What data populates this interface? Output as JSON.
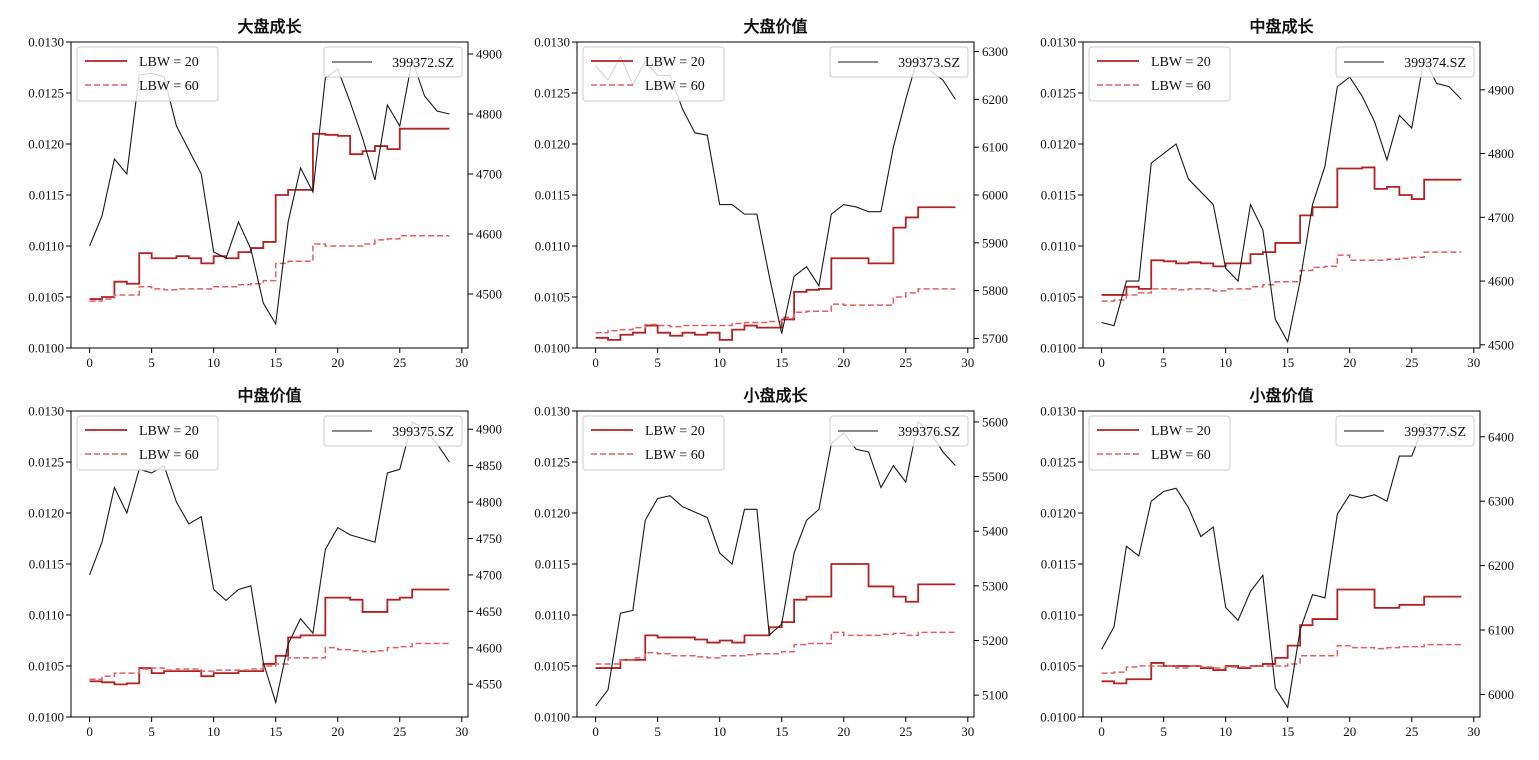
{
  "figure": {
    "legend_left": {
      "lbw20": "LBW = 20",
      "lbw60": "LBW = 60"
    },
    "left_axis": {
      "ylim": [
        0.01,
        0.013
      ],
      "ticks": [
        "0.0100",
        "0.0105",
        "0.0110",
        "0.0115",
        "0.0120",
        "0.0125",
        "0.0130"
      ]
    },
    "x_axis": {
      "xlim": [
        -1.5,
        30.5
      ],
      "ticks": [
        "0",
        "5",
        "10",
        "15",
        "20",
        "25",
        "30"
      ]
    },
    "colors": {
      "lbw20": "#b22222",
      "lbw60": "#e06060",
      "index": "#1a1a1a"
    }
  },
  "chart_data": [
    {
      "type": "line",
      "title": "大盘成长",
      "x": [
        0,
        1,
        2,
        3,
        4,
        5,
        6,
        7,
        8,
        9,
        10,
        11,
        12,
        13,
        14,
        15,
        16,
        17,
        18,
        19,
        20,
        21,
        22,
        23,
        24,
        25,
        26,
        27,
        28,
        29
      ],
      "series": [
        {
          "name": "LBW = 20",
          "axis": "left",
          "step": true,
          "values": [
            0.01048,
            0.0105,
            0.01065,
            0.01063,
            0.01093,
            0.01088,
            0.01088,
            0.0109,
            0.01088,
            0.01083,
            0.0109,
            0.01088,
            0.01094,
            0.01098,
            0.01104,
            0.0115,
            0.01155,
            0.01155,
            0.0121,
            0.01209,
            0.01208,
            0.0119,
            0.01193,
            0.01198,
            0.01195,
            0.01215,
            0.01215,
            0.01215,
            0.01215,
            0.01215
          ]
        },
        {
          "name": "LBW = 60",
          "axis": "left",
          "step": true,
          "dashed": true,
          "values": [
            0.01046,
            0.01048,
            0.01052,
            0.01052,
            0.0106,
            0.01058,
            0.01057,
            0.01058,
            0.01058,
            0.01058,
            0.0106,
            0.0106,
            0.01062,
            0.01063,
            0.01066,
            0.01083,
            0.01085,
            0.01085,
            0.01102,
            0.011,
            0.011,
            0.011,
            0.01102,
            0.01106,
            0.01107,
            0.0111,
            0.0111,
            0.0111,
            0.0111,
            0.0111
          ]
        },
        {
          "name": "399372.SZ",
          "axis": "right",
          "values": [
            4580,
            4630,
            4725,
            4700,
            4865,
            4868,
            4862,
            4780,
            4740,
            4700,
            4570,
            4560,
            4620,
            4575,
            4485,
            4450,
            4620,
            4710,
            4670,
            4860,
            4875,
            4820,
            4760,
            4690,
            4815,
            4780,
            4890,
            4830,
            4805,
            4800
          ]
        }
      ],
      "y2lim": [
        4410,
        4920
      ],
      "y2ticks": [
        4500,
        4600,
        4700,
        4800,
        4900
      ]
    },
    {
      "type": "line",
      "title": "大盘价值",
      "x": [
        0,
        1,
        2,
        3,
        4,
        5,
        6,
        7,
        8,
        9,
        10,
        11,
        12,
        13,
        14,
        15,
        16,
        17,
        18,
        19,
        20,
        21,
        22,
        23,
        24,
        25,
        26,
        27,
        28,
        29
      ],
      "series": [
        {
          "name": "LBW = 20",
          "axis": "left",
          "step": true,
          "values": [
            0.0101,
            0.01008,
            0.01013,
            0.01015,
            0.01022,
            0.01015,
            0.01012,
            0.01015,
            0.01013,
            0.01015,
            0.01008,
            0.01018,
            0.01022,
            0.0102,
            0.0102,
            0.01028,
            0.01055,
            0.01057,
            0.01058,
            0.01088,
            0.01088,
            0.01088,
            0.01083,
            0.01083,
            0.01118,
            0.01128,
            0.01138,
            0.01138,
            0.01138,
            0.01138
          ]
        },
        {
          "name": "LBW = 60",
          "axis": "left",
          "step": true,
          "dashed": true,
          "values": [
            0.01015,
            0.01017,
            0.01018,
            0.0102,
            0.01023,
            0.01022,
            0.01021,
            0.01022,
            0.01022,
            0.01022,
            0.01022,
            0.01024,
            0.01025,
            0.01025,
            0.01026,
            0.0103,
            0.01035,
            0.01036,
            0.01036,
            0.01043,
            0.01042,
            0.01042,
            0.01042,
            0.01042,
            0.0105,
            0.01054,
            0.01058,
            0.01058,
            0.01058,
            0.01058
          ]
        },
        {
          "name": "399373.SZ",
          "axis": "right",
          "values": [
            6270,
            6240,
            6290,
            6230,
            6280,
            6250,
            6250,
            6180,
            6130,
            6125,
            5980,
            5980,
            5960,
            5960,
            5830,
            5710,
            5830,
            5850,
            5810,
            5960,
            5980,
            5975,
            5965,
            5965,
            6100,
            6200,
            6290,
            6260,
            6240,
            6200
          ]
        }
      ],
      "y2lim": [
        5680,
        6320
      ],
      "y2ticks": [
        5700,
        5800,
        5900,
        6000,
        6100,
        6200,
        6300
      ]
    },
    {
      "type": "line",
      "title": "中盘成长",
      "x": [
        0,
        1,
        2,
        3,
        4,
        5,
        6,
        7,
        8,
        9,
        10,
        11,
        12,
        13,
        14,
        15,
        16,
        17,
        18,
        19,
        20,
        21,
        22,
        23,
        24,
        25,
        26,
        27,
        28,
        29
      ],
      "series": [
        {
          "name": "LBW = 20",
          "axis": "left",
          "step": true,
          "values": [
            0.01052,
            0.01052,
            0.0106,
            0.01058,
            0.01086,
            0.01085,
            0.01083,
            0.01084,
            0.01083,
            0.0108,
            0.01083,
            0.01083,
            0.01092,
            0.01094,
            0.01103,
            0.01103,
            0.0113,
            0.01138,
            0.01138,
            0.01176,
            0.01176,
            0.01177,
            0.01156,
            0.01158,
            0.0115,
            0.01146,
            0.01165,
            0.01165,
            0.01165,
            0.01165
          ]
        },
        {
          "name": "LBW = 60",
          "axis": "left",
          "step": true,
          "dashed": true,
          "values": [
            0.01046,
            0.01047,
            0.01052,
            0.01054,
            0.01058,
            0.01058,
            0.01057,
            0.01058,
            0.01058,
            0.01056,
            0.01058,
            0.01058,
            0.0106,
            0.01062,
            0.01065,
            0.01065,
            0.01076,
            0.01079,
            0.0108,
            0.01091,
            0.01086,
            0.01086,
            0.01086,
            0.01087,
            0.01088,
            0.01089,
            0.01094,
            0.01094,
            0.01094,
            0.01094
          ]
        },
        {
          "name": "399374.SZ",
          "axis": "right",
          "values": [
            4535,
            4530,
            4600,
            4600,
            4785,
            4800,
            4815,
            4760,
            4740,
            4720,
            4620,
            4600,
            4720,
            4680,
            4540,
            4505,
            4600,
            4720,
            4780,
            4905,
            4920,
            4890,
            4850,
            4790,
            4860,
            4840,
            4950,
            4910,
            4905,
            4885
          ]
        }
      ],
      "y2lim": [
        4495,
        4975
      ],
      "y2ticks": [
        4500,
        4600,
        4700,
        4800,
        4900
      ]
    },
    {
      "type": "line",
      "title": "中盘价值",
      "x": [
        0,
        1,
        2,
        3,
        4,
        5,
        6,
        7,
        8,
        9,
        10,
        11,
        12,
        13,
        14,
        15,
        16,
        17,
        18,
        19,
        20,
        21,
        22,
        23,
        24,
        25,
        26,
        27,
        28,
        29
      ],
      "series": [
        {
          "name": "LBW = 20",
          "axis": "left",
          "step": true,
          "values": [
            0.01035,
            0.01034,
            0.01032,
            0.01033,
            0.01048,
            0.01043,
            0.01045,
            0.01045,
            0.01045,
            0.0104,
            0.01043,
            0.01043,
            0.01045,
            0.01045,
            0.01052,
            0.0106,
            0.01078,
            0.0108,
            0.0108,
            0.01117,
            0.01117,
            0.01115,
            0.01103,
            0.01103,
            0.01115,
            0.01117,
            0.01125,
            0.01125,
            0.01125,
            0.01125
          ]
        },
        {
          "name": "LBW = 60",
          "axis": "left",
          "step": true,
          "dashed": true,
          "values": [
            0.01037,
            0.0104,
            0.01043,
            0.01043,
            0.01047,
            0.01048,
            0.01046,
            0.01047,
            0.01047,
            0.01045,
            0.01046,
            0.01046,
            0.01046,
            0.01047,
            0.0105,
            0.01052,
            0.01058,
            0.01058,
            0.01058,
            0.01068,
            0.01066,
            0.01065,
            0.01064,
            0.01065,
            0.01068,
            0.01069,
            0.01072,
            0.01072,
            0.01072,
            0.01072
          ]
        },
        {
          "name": "399375.SZ",
          "axis": "right",
          "values": [
            4700,
            4745,
            4820,
            4785,
            4845,
            4840,
            4850,
            4800,
            4770,
            4780,
            4680,
            4665,
            4680,
            4685,
            4580,
            4525,
            4605,
            4640,
            4620,
            4735,
            4765,
            4755,
            4750,
            4745,
            4840,
            4845,
            4910,
            4900,
            4880,
            4855
          ]
        }
      ],
      "y2lim": [
        4505,
        4925
      ],
      "y2ticks": [
        4550,
        4600,
        4650,
        4700,
        4750,
        4800,
        4850,
        4900
      ]
    },
    {
      "type": "line",
      "title": "小盘成长",
      "x": [
        0,
        1,
        2,
        3,
        4,
        5,
        6,
        7,
        8,
        9,
        10,
        11,
        12,
        13,
        14,
        15,
        16,
        17,
        18,
        19,
        20,
        21,
        22,
        23,
        24,
        25,
        26,
        27,
        28,
        29
      ],
      "series": [
        {
          "name": "LBW = 20",
          "axis": "left",
          "step": true,
          "values": [
            0.01048,
            0.01048,
            0.01056,
            0.01056,
            0.0108,
            0.01078,
            0.01078,
            0.01078,
            0.01076,
            0.01073,
            0.01075,
            0.01073,
            0.0108,
            0.0108,
            0.01088,
            0.01093,
            0.01115,
            0.01118,
            0.01118,
            0.0115,
            0.0115,
            0.0115,
            0.01128,
            0.01128,
            0.01118,
            0.01113,
            0.0113,
            0.0113,
            0.0113,
            0.0113
          ]
        },
        {
          "name": "LBW = 60",
          "axis": "left",
          "step": true,
          "dashed": true,
          "values": [
            0.01052,
            0.01052,
            0.01056,
            0.01058,
            0.01063,
            0.01062,
            0.0106,
            0.0106,
            0.01059,
            0.01058,
            0.0106,
            0.0106,
            0.01061,
            0.01062,
            0.01062,
            0.01064,
            0.01071,
            0.01072,
            0.01072,
            0.01083,
            0.0108,
            0.0108,
            0.0108,
            0.01081,
            0.01082,
            0.0108,
            0.01083,
            0.01083,
            0.01083,
            0.01083
          ]
        },
        {
          "name": "399376.SZ",
          "axis": "right",
          "values": [
            5080,
            5110,
            5250,
            5255,
            5420,
            5460,
            5465,
            5445,
            5435,
            5425,
            5360,
            5340,
            5440,
            5440,
            5210,
            5230,
            5360,
            5420,
            5440,
            5560,
            5580,
            5550,
            5545,
            5480,
            5520,
            5490,
            5600,
            5580,
            5545,
            5520
          ]
        }
      ],
      "y2lim": [
        5060,
        5620
      ],
      "y2ticks": [
        5100,
        5200,
        5300,
        5400,
        5500,
        5600
      ]
    },
    {
      "type": "line",
      "title": "小盘价值",
      "x": [
        0,
        1,
        2,
        3,
        4,
        5,
        6,
        7,
        8,
        9,
        10,
        11,
        12,
        13,
        14,
        15,
        16,
        17,
        18,
        19,
        20,
        21,
        22,
        23,
        24,
        25,
        26,
        27,
        28,
        29
      ],
      "series": [
        {
          "name": "LBW = 20",
          "axis": "left",
          "step": true,
          "values": [
            0.01035,
            0.01033,
            0.01037,
            0.01037,
            0.01053,
            0.0105,
            0.0105,
            0.0105,
            0.01048,
            0.01046,
            0.0105,
            0.01048,
            0.0105,
            0.01052,
            0.01058,
            0.0107,
            0.0109,
            0.01096,
            0.01096,
            0.01125,
            0.01125,
            0.01125,
            0.01107,
            0.01107,
            0.0111,
            0.0111,
            0.01118,
            0.01118,
            0.01118,
            0.01118
          ]
        },
        {
          "name": "LBW = 60",
          "axis": "left",
          "step": true,
          "dashed": true,
          "values": [
            0.01043,
            0.01044,
            0.01049,
            0.0105,
            0.0105,
            0.0105,
            0.01048,
            0.0105,
            0.01049,
            0.01048,
            0.01049,
            0.01049,
            0.0105,
            0.0105,
            0.0105,
            0.01052,
            0.0106,
            0.0106,
            0.0106,
            0.0107,
            0.01068,
            0.01068,
            0.01067,
            0.01068,
            0.01069,
            0.01069,
            0.01071,
            0.01071,
            0.01071,
            0.01071
          ]
        },
        {
          "name": "399377.SZ",
          "axis": "right",
          "values": [
            6070,
            6105,
            6230,
            6215,
            6300,
            6315,
            6320,
            6290,
            6245,
            6260,
            6135,
            6115,
            6160,
            6185,
            6010,
            5980,
            6100,
            6155,
            6150,
            6280,
            6310,
            6305,
            6310,
            6300,
            6370,
            6370,
            6420,
            6415,
            6405,
            6395
          ]
        }
      ],
      "y2lim": [
        5965,
        6440
      ],
      "y2ticks": [
        6000,
        6100,
        6200,
        6300,
        6400
      ]
    }
  ]
}
